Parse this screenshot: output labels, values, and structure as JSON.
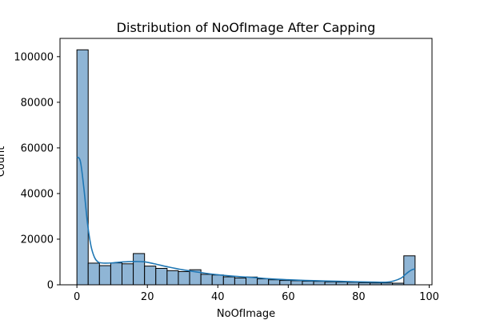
{
  "chart_data": {
    "type": "bar",
    "title": "Distribution of NoOfImage After Capping",
    "xlabel": "NoOfImage",
    "ylabel": "Count",
    "xlim": [
      -4.8,
      100.8
    ],
    "ylim": [
      0,
      108000
    ],
    "grid": false,
    "legend": "none",
    "bin_width": 3.2,
    "bins": [
      {
        "start": 0.0,
        "count": 103000
      },
      {
        "start": 3.2,
        "count": 9500
      },
      {
        "start": 6.4,
        "count": 8400
      },
      {
        "start": 9.6,
        "count": 9600
      },
      {
        "start": 12.8,
        "count": 9200
      },
      {
        "start": 16.0,
        "count": 13700
      },
      {
        "start": 19.2,
        "count": 8200
      },
      {
        "start": 22.4,
        "count": 7200
      },
      {
        "start": 25.6,
        "count": 6200
      },
      {
        "start": 28.8,
        "count": 5800
      },
      {
        "start": 32.0,
        "count": 6600
      },
      {
        "start": 35.2,
        "count": 4600
      },
      {
        "start": 38.4,
        "count": 4300
      },
      {
        "start": 41.6,
        "count": 3500
      },
      {
        "start": 44.8,
        "count": 3000
      },
      {
        "start": 48.0,
        "count": 3400
      },
      {
        "start": 51.2,
        "count": 2600
      },
      {
        "start": 54.4,
        "count": 2200
      },
      {
        "start": 57.6,
        "count": 1900
      },
      {
        "start": 60.8,
        "count": 1800
      },
      {
        "start": 64.0,
        "count": 1600
      },
      {
        "start": 67.2,
        "count": 1500
      },
      {
        "start": 70.4,
        "count": 1300
      },
      {
        "start": 73.6,
        "count": 1200
      },
      {
        "start": 76.8,
        "count": 1100
      },
      {
        "start": 80.0,
        "count": 900
      },
      {
        "start": 83.2,
        "count": 800
      },
      {
        "start": 86.4,
        "count": 800
      },
      {
        "start": 89.6,
        "count": 700
      },
      {
        "start": 92.8,
        "count": 12700
      }
    ],
    "kde": {
      "x": [
        0,
        1,
        2,
        3,
        4,
        5,
        6,
        7,
        8,
        10,
        13,
        16,
        19,
        22,
        26,
        30,
        35,
        40,
        45,
        50,
        55,
        60,
        65,
        70,
        75,
        80,
        85,
        88,
        90,
        92,
        93,
        94,
        95,
        96
      ],
      "y": [
        56000,
        54000,
        42000,
        27000,
        17000,
        12000,
        10000,
        9600,
        9500,
        9600,
        10000,
        10200,
        10100,
        9200,
        7800,
        6600,
        5400,
        4400,
        3700,
        3200,
        2600,
        2200,
        1900,
        1700,
        1500,
        1300,
        1150,
        1150,
        1700,
        2900,
        4200,
        5500,
        6500,
        7000
      ]
    },
    "xticks": [
      0,
      20,
      40,
      60,
      80,
      100
    ],
    "xtick_labels": [
      "0",
      "20",
      "40",
      "60",
      "80",
      "100"
    ],
    "yticks": [
      0,
      20000,
      40000,
      60000,
      80000,
      100000
    ],
    "ytick_labels": [
      "0",
      "20000",
      "40000",
      "60000",
      "80000",
      "100000"
    ],
    "colors": {
      "bar_fill": "#8fb5d5",
      "bar_edge": "#000000",
      "kde_line": "#1f77b4"
    }
  }
}
